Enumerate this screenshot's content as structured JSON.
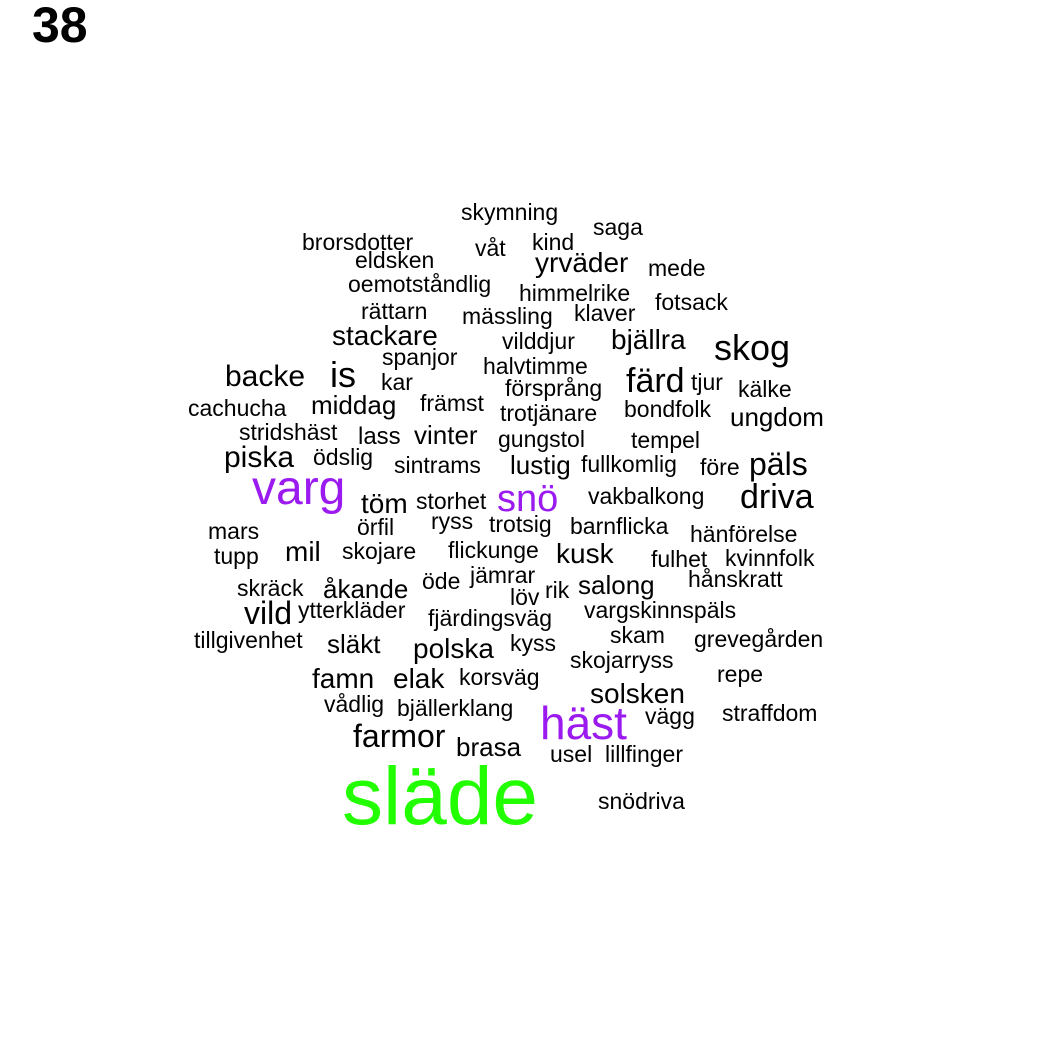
{
  "page_number": "38",
  "colors": {
    "green": "#22ff00",
    "purple": "#9b1aef",
    "black": "#000000"
  },
  "words": [
    {
      "text": "skymning",
      "color": "black"
    },
    {
      "text": "saga",
      "color": "black"
    },
    {
      "text": "brorsdotter",
      "color": "black"
    },
    {
      "text": "våt",
      "color": "black"
    },
    {
      "text": "kind",
      "color": "black"
    },
    {
      "text": "eldsken",
      "color": "black"
    },
    {
      "text": "yrväder",
      "color": "black"
    },
    {
      "text": "mede",
      "color": "black"
    },
    {
      "text": "oemotståndlig",
      "color": "black"
    },
    {
      "text": "himmelrike",
      "color": "black"
    },
    {
      "text": "fotsack",
      "color": "black"
    },
    {
      "text": "rättarn",
      "color": "black"
    },
    {
      "text": "mässling",
      "color": "black"
    },
    {
      "text": "klaver",
      "color": "black"
    },
    {
      "text": "stackare",
      "color": "black"
    },
    {
      "text": "vilddjur",
      "color": "black"
    },
    {
      "text": "bjällra",
      "color": "black"
    },
    {
      "text": "skog",
      "color": "black"
    },
    {
      "text": "spanjor",
      "color": "black"
    },
    {
      "text": "halvtimme",
      "color": "black"
    },
    {
      "text": "backe",
      "color": "black"
    },
    {
      "text": "is",
      "color": "black"
    },
    {
      "text": "kar",
      "color": "black"
    },
    {
      "text": "försprång",
      "color": "black"
    },
    {
      "text": "färd",
      "color": "black"
    },
    {
      "text": "tjur",
      "color": "black"
    },
    {
      "text": "kälke",
      "color": "black"
    },
    {
      "text": "cachucha",
      "color": "black"
    },
    {
      "text": "middag",
      "color": "black"
    },
    {
      "text": "främst",
      "color": "black"
    },
    {
      "text": "trotjänare",
      "color": "black"
    },
    {
      "text": "bondfolk",
      "color": "black"
    },
    {
      "text": "ungdom",
      "color": "black"
    },
    {
      "text": "stridshäst",
      "color": "black"
    },
    {
      "text": "lass",
      "color": "black"
    },
    {
      "text": "vinter",
      "color": "black"
    },
    {
      "text": "gungstol",
      "color": "black"
    },
    {
      "text": "tempel",
      "color": "black"
    },
    {
      "text": "piska",
      "color": "black"
    },
    {
      "text": "ödslig",
      "color": "black"
    },
    {
      "text": "sintrams",
      "color": "black"
    },
    {
      "text": "lustig",
      "color": "black"
    },
    {
      "text": "fullkomlig",
      "color": "black"
    },
    {
      "text": "före",
      "color": "black"
    },
    {
      "text": "päls",
      "color": "black"
    },
    {
      "text": "varg",
      "color": "purple"
    },
    {
      "text": "töm",
      "color": "black"
    },
    {
      "text": "storhet",
      "color": "black"
    },
    {
      "text": "snö",
      "color": "purple"
    },
    {
      "text": "vakbalkong",
      "color": "black"
    },
    {
      "text": "driva",
      "color": "black"
    },
    {
      "text": "mars",
      "color": "black"
    },
    {
      "text": "örfil",
      "color": "black"
    },
    {
      "text": "ryss",
      "color": "black"
    },
    {
      "text": "trotsig",
      "color": "black"
    },
    {
      "text": "barnflicka",
      "color": "black"
    },
    {
      "text": "hänförelse",
      "color": "black"
    },
    {
      "text": "tupp",
      "color": "black"
    },
    {
      "text": "mil",
      "color": "black"
    },
    {
      "text": "skojare",
      "color": "black"
    },
    {
      "text": "flickunge",
      "color": "black"
    },
    {
      "text": "kusk",
      "color": "black"
    },
    {
      "text": "fulhet",
      "color": "black"
    },
    {
      "text": "kvinnfolk",
      "color": "black"
    },
    {
      "text": "jämrar",
      "color": "black"
    },
    {
      "text": "skräck",
      "color": "black"
    },
    {
      "text": "åkande",
      "color": "black"
    },
    {
      "text": "öde",
      "color": "black"
    },
    {
      "text": "rik",
      "color": "black"
    },
    {
      "text": "salong",
      "color": "black"
    },
    {
      "text": "hånskratt",
      "color": "black"
    },
    {
      "text": "löv",
      "color": "black"
    },
    {
      "text": "vild",
      "color": "black"
    },
    {
      "text": "ytterkläder",
      "color": "black"
    },
    {
      "text": "fjärdingsväg",
      "color": "black"
    },
    {
      "text": "vargskinnspäls",
      "color": "black"
    },
    {
      "text": "tillgivenhet",
      "color": "black"
    },
    {
      "text": "släkt",
      "color": "black"
    },
    {
      "text": "kyss",
      "color": "black"
    },
    {
      "text": "skam",
      "color": "black"
    },
    {
      "text": "grevegården",
      "color": "black"
    },
    {
      "text": "polska",
      "color": "black"
    },
    {
      "text": "skojarryss",
      "color": "black"
    },
    {
      "text": "famn",
      "color": "black"
    },
    {
      "text": "elak",
      "color": "black"
    },
    {
      "text": "korsväg",
      "color": "black"
    },
    {
      "text": "repe",
      "color": "black"
    },
    {
      "text": "solsken",
      "color": "black"
    },
    {
      "text": "vådlig",
      "color": "black"
    },
    {
      "text": "bjällerklang",
      "color": "black"
    },
    {
      "text": "häst",
      "color": "purple"
    },
    {
      "text": "vägg",
      "color": "black"
    },
    {
      "text": "straffdom",
      "color": "black"
    },
    {
      "text": "farmor",
      "color": "black"
    },
    {
      "text": "brasa",
      "color": "black"
    },
    {
      "text": "usel",
      "color": "black"
    },
    {
      "text": "lillfinger",
      "color": "black"
    },
    {
      "text": "släde",
      "color": "green"
    },
    {
      "text": "snödriva",
      "color": "black"
    }
  ]
}
